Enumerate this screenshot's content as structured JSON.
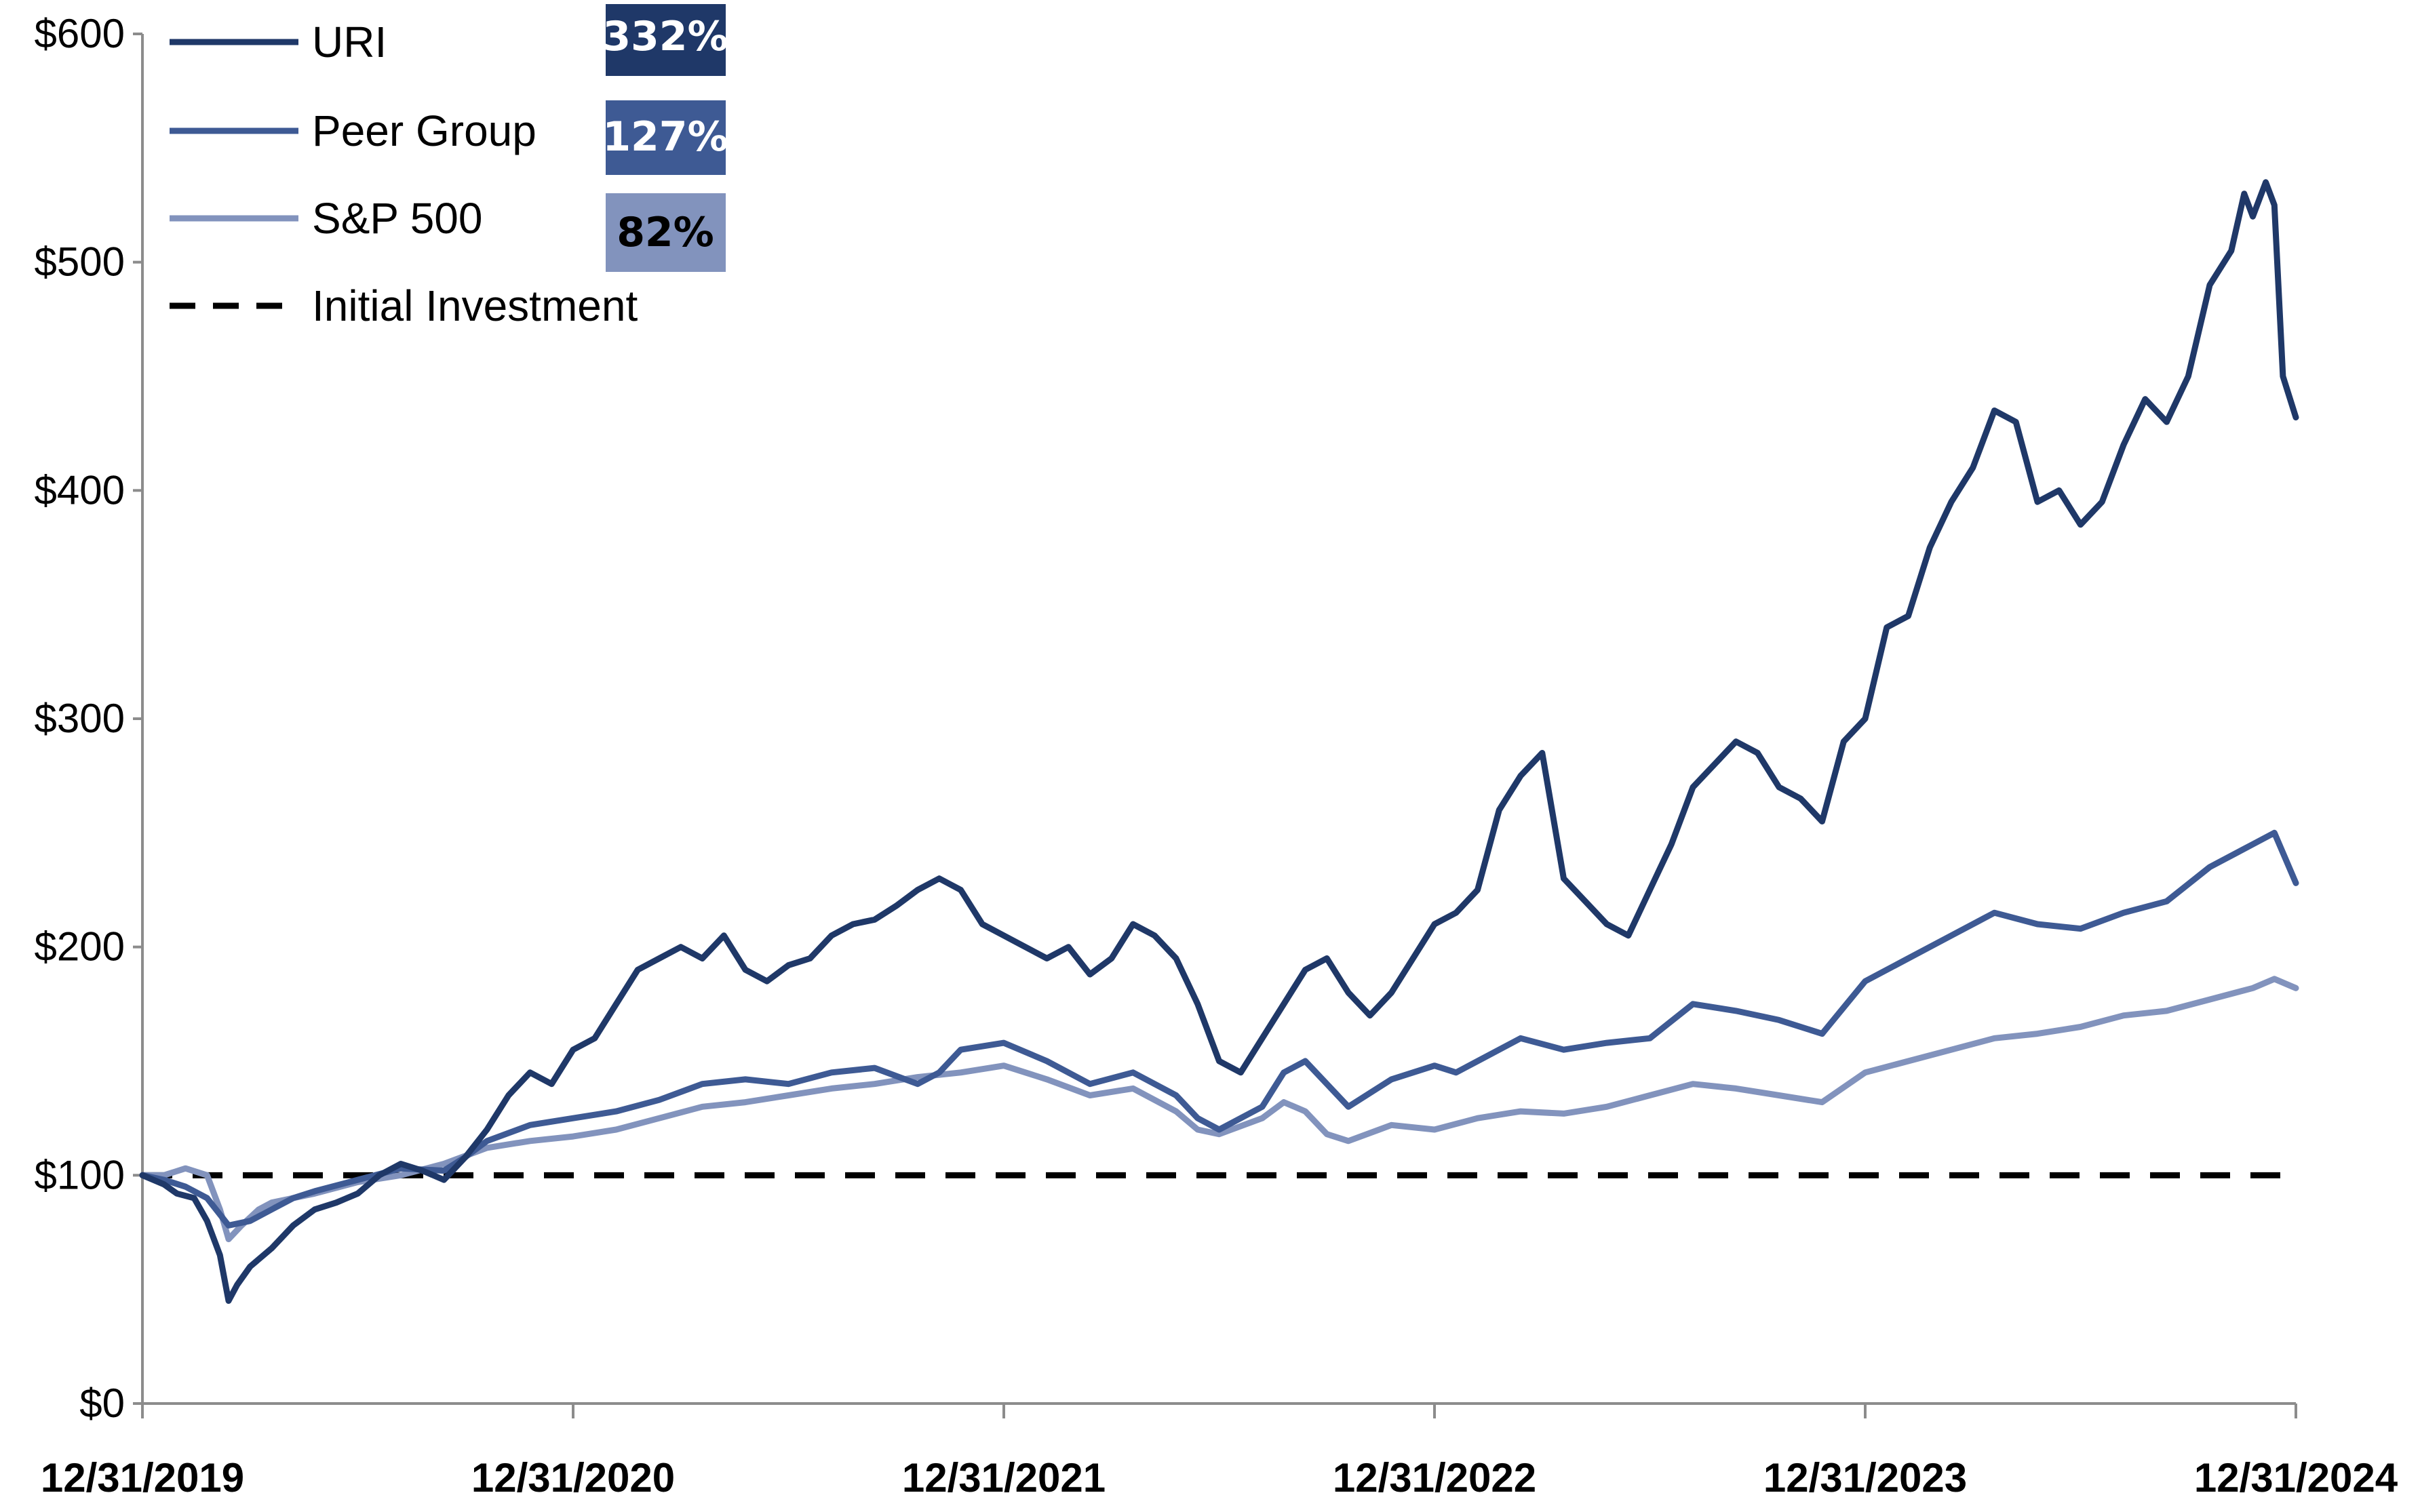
{
  "chart_data": {
    "type": "line",
    "title": "",
    "xlabel": "",
    "ylabel": "",
    "ylim": [
      0,
      600
    ],
    "yticks": [
      0,
      100,
      200,
      300,
      400,
      500,
      600
    ],
    "ytick_labels": [
      "$0",
      "$100",
      "$200",
      "$300",
      "$400",
      "$500",
      "$600"
    ],
    "xlim": [
      0,
      5
    ],
    "xticks": [
      0,
      1,
      2,
      3,
      4,
      5
    ],
    "xtick_labels": [
      "12/31/2019",
      "12/31/2020",
      "12/31/2021",
      "12/31/2022",
      "12/31/2023",
      "12/31/2024"
    ],
    "legend_position": "top-left",
    "series": [
      {
        "name": "URI",
        "color": "#1f3868",
        "return_label": "332%",
        "badge_color": "#1f3868",
        "badge_text_color": "#ffffff",
        "points": [
          [
            0,
            100
          ],
          [
            0.05,
            96
          ],
          [
            0.08,
            92
          ],
          [
            0.12,
            90
          ],
          [
            0.15,
            80
          ],
          [
            0.18,
            65
          ],
          [
            0.2,
            45
          ],
          [
            0.22,
            52
          ],
          [
            0.25,
            60
          ],
          [
            0.3,
            68
          ],
          [
            0.35,
            78
          ],
          [
            0.4,
            85
          ],
          [
            0.45,
            88
          ],
          [
            0.5,
            92
          ],
          [
            0.55,
            100
          ],
          [
            0.6,
            105
          ],
          [
            0.65,
            102
          ],
          [
            0.7,
            98
          ],
          [
            0.75,
            108
          ],
          [
            0.8,
            120
          ],
          [
            0.85,
            135
          ],
          [
            0.9,
            145
          ],
          [
            0.95,
            140
          ],
          [
            1.0,
            155
          ],
          [
            1.05,
            160
          ],
          [
            1.1,
            175
          ],
          [
            1.15,
            190
          ],
          [
            1.2,
            195
          ],
          [
            1.25,
            200
          ],
          [
            1.3,
            195
          ],
          [
            1.35,
            205
          ],
          [
            1.4,
            190
          ],
          [
            1.45,
            185
          ],
          [
            1.5,
            192
          ],
          [
            1.55,
            195
          ],
          [
            1.6,
            205
          ],
          [
            1.65,
            210
          ],
          [
            1.7,
            212
          ],
          [
            1.75,
            218
          ],
          [
            1.8,
            225
          ],
          [
            1.85,
            230
          ],
          [
            1.9,
            225
          ],
          [
            1.95,
            210
          ],
          [
            2.0,
            205
          ],
          [
            2.05,
            200
          ],
          [
            2.1,
            195
          ],
          [
            2.15,
            200
          ],
          [
            2.2,
            188
          ],
          [
            2.25,
            195
          ],
          [
            2.3,
            210
          ],
          [
            2.35,
            205
          ],
          [
            2.4,
            195
          ],
          [
            2.45,
            175
          ],
          [
            2.5,
            150
          ],
          [
            2.55,
            145
          ],
          [
            2.6,
            160
          ],
          [
            2.65,
            175
          ],
          [
            2.7,
            190
          ],
          [
            2.75,
            195
          ],
          [
            2.8,
            180
          ],
          [
            2.85,
            170
          ],
          [
            2.9,
            180
          ],
          [
            2.95,
            195
          ],
          [
            3.0,
            210
          ],
          [
            3.05,
            215
          ],
          [
            3.1,
            225
          ],
          [
            3.15,
            260
          ],
          [
            3.2,
            275
          ],
          [
            3.25,
            285
          ],
          [
            3.3,
            230
          ],
          [
            3.35,
            220
          ],
          [
            3.4,
            210
          ],
          [
            3.45,
            205
          ],
          [
            3.5,
            225
          ],
          [
            3.55,
            245
          ],
          [
            3.6,
            270
          ],
          [
            3.65,
            280
          ],
          [
            3.7,
            290
          ],
          [
            3.75,
            285
          ],
          [
            3.8,
            270
          ],
          [
            3.85,
            265
          ],
          [
            3.9,
            255
          ],
          [
            3.95,
            290
          ],
          [
            4.0,
            300
          ],
          [
            4.05,
            340
          ],
          [
            4.1,
            345
          ],
          [
            4.15,
            375
          ],
          [
            4.2,
            395
          ],
          [
            4.25,
            410
          ],
          [
            4.3,
            435
          ],
          [
            4.35,
            430
          ],
          [
            4.4,
            395
          ],
          [
            4.45,
            400
          ],
          [
            4.5,
            385
          ],
          [
            4.55,
            395
          ],
          [
            4.6,
            420
          ],
          [
            4.65,
            440
          ],
          [
            4.7,
            430
          ],
          [
            4.75,
            450
          ],
          [
            4.8,
            490
          ],
          [
            4.85,
            505
          ],
          [
            4.88,
            530
          ],
          [
            4.9,
            520
          ],
          [
            4.93,
            535
          ],
          [
            4.95,
            525
          ],
          [
            4.97,
            450
          ],
          [
            5.0,
            432
          ]
        ]
      },
      {
        "name": "Peer Group",
        "color": "#3e5a94",
        "return_label": "127%",
        "badge_color": "#3e5a94",
        "badge_text_color": "#ffffff",
        "points": [
          [
            0,
            100
          ],
          [
            0.05,
            98
          ],
          [
            0.1,
            95
          ],
          [
            0.15,
            90
          ],
          [
            0.2,
            78
          ],
          [
            0.25,
            80
          ],
          [
            0.3,
            85
          ],
          [
            0.35,
            90
          ],
          [
            0.4,
            93
          ],
          [
            0.5,
            98
          ],
          [
            0.6,
            103
          ],
          [
            0.7,
            102
          ],
          [
            0.75,
            108
          ],
          [
            0.8,
            115
          ],
          [
            0.9,
            122
          ],
          [
            1.0,
            125
          ],
          [
            1.1,
            128
          ],
          [
            1.2,
            133
          ],
          [
            1.3,
            140
          ],
          [
            1.4,
            142
          ],
          [
            1.5,
            140
          ],
          [
            1.6,
            145
          ],
          [
            1.7,
            147
          ],
          [
            1.8,
            140
          ],
          [
            1.85,
            145
          ],
          [
            1.9,
            155
          ],
          [
            2.0,
            158
          ],
          [
            2.1,
            150
          ],
          [
            2.2,
            140
          ],
          [
            2.3,
            145
          ],
          [
            2.4,
            135
          ],
          [
            2.45,
            125
          ],
          [
            2.5,
            120
          ],
          [
            2.6,
            130
          ],
          [
            2.65,
            145
          ],
          [
            2.7,
            150
          ],
          [
            2.75,
            140
          ],
          [
            2.8,
            130
          ],
          [
            2.9,
            142
          ],
          [
            3.0,
            148
          ],
          [
            3.05,
            145
          ],
          [
            3.1,
            150
          ],
          [
            3.2,
            160
          ],
          [
            3.3,
            155
          ],
          [
            3.4,
            158
          ],
          [
            3.5,
            160
          ],
          [
            3.6,
            175
          ],
          [
            3.7,
            172
          ],
          [
            3.8,
            168
          ],
          [
            3.9,
            162
          ],
          [
            4.0,
            185
          ],
          [
            4.1,
            195
          ],
          [
            4.2,
            205
          ],
          [
            4.3,
            215
          ],
          [
            4.4,
            210
          ],
          [
            4.5,
            208
          ],
          [
            4.6,
            215
          ],
          [
            4.7,
            220
          ],
          [
            4.8,
            235
          ],
          [
            4.9,
            245
          ],
          [
            4.95,
            250
          ],
          [
            5.0,
            228
          ]
        ]
      },
      {
        "name": "S&P 500",
        "color": "#8293bd",
        "return_label": "82%",
        "badge_color": "#8293bd",
        "badge_text_color": "#000000",
        "points": [
          [
            0,
            100
          ],
          [
            0.05,
            100
          ],
          [
            0.1,
            103
          ],
          [
            0.15,
            100
          ],
          [
            0.18,
            85
          ],
          [
            0.2,
            72
          ],
          [
            0.23,
            78
          ],
          [
            0.27,
            85
          ],
          [
            0.3,
            88
          ],
          [
            0.35,
            90
          ],
          [
            0.4,
            92
          ],
          [
            0.5,
            97
          ],
          [
            0.6,
            100
          ],
          [
            0.7,
            105
          ],
          [
            0.8,
            112
          ],
          [
            0.9,
            115
          ],
          [
            1.0,
            117
          ],
          [
            1.1,
            120
          ],
          [
            1.2,
            125
          ],
          [
            1.3,
            130
          ],
          [
            1.4,
            132
          ],
          [
            1.5,
            135
          ],
          [
            1.6,
            138
          ],
          [
            1.7,
            140
          ],
          [
            1.8,
            143
          ],
          [
            1.9,
            145
          ],
          [
            2.0,
            148
          ],
          [
            2.1,
            142
          ],
          [
            2.2,
            135
          ],
          [
            2.3,
            138
          ],
          [
            2.4,
            128
          ],
          [
            2.45,
            120
          ],
          [
            2.5,
            118
          ],
          [
            2.6,
            125
          ],
          [
            2.65,
            132
          ],
          [
            2.7,
            128
          ],
          [
            2.75,
            118
          ],
          [
            2.8,
            115
          ],
          [
            2.9,
            122
          ],
          [
            3.0,
            120
          ],
          [
            3.1,
            125
          ],
          [
            3.2,
            128
          ],
          [
            3.3,
            127
          ],
          [
            3.4,
            130
          ],
          [
            3.5,
            135
          ],
          [
            3.6,
            140
          ],
          [
            3.7,
            138
          ],
          [
            3.8,
            135
          ],
          [
            3.9,
            132
          ],
          [
            4.0,
            145
          ],
          [
            4.1,
            150
          ],
          [
            4.2,
            155
          ],
          [
            4.3,
            160
          ],
          [
            4.4,
            162
          ],
          [
            4.5,
            165
          ],
          [
            4.6,
            170
          ],
          [
            4.7,
            172
          ],
          [
            4.8,
            177
          ],
          [
            4.9,
            182
          ],
          [
            4.95,
            186
          ],
          [
            5.0,
            182
          ]
        ]
      }
    ],
    "reference_line": {
      "name": "Initial Investment",
      "value": 100,
      "color": "#000000",
      "style": "dashed"
    }
  }
}
